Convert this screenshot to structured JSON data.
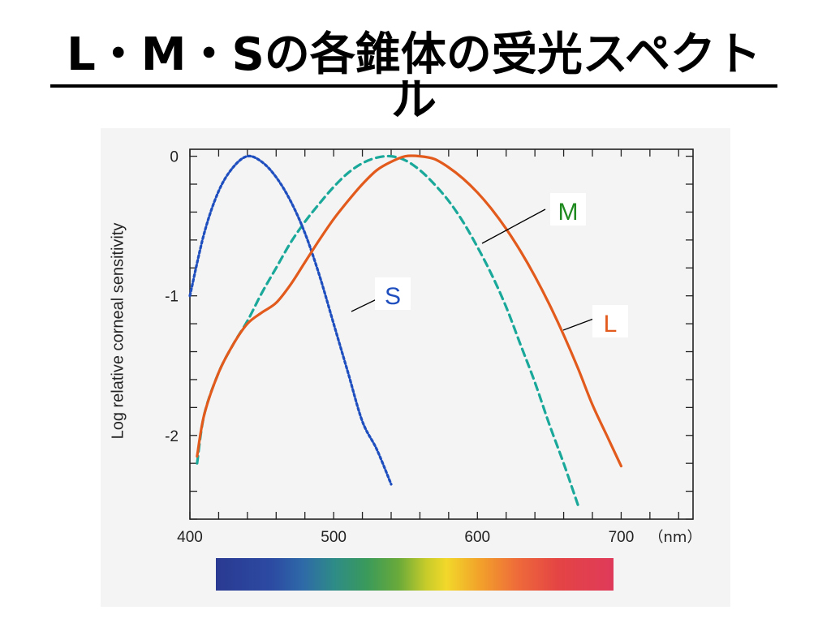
{
  "page": {
    "title": "L・M・Sの各錐体の受光スペクトル"
  },
  "colors": {
    "S": "#1f4fbf",
    "M": "#1aa89a",
    "L": "#e25a1c",
    "M_label": "#1f8a1f",
    "axis": "#222222"
  },
  "chart_data": {
    "type": "line",
    "title": "",
    "xlabel": "",
    "x_unit_label": "（nm）",
    "ylabel": "Log relative corneal sensitivity",
    "xlim": [
      400,
      750
    ],
    "ylim": [
      -2.6,
      0.05
    ],
    "x_ticks": [
      400,
      500,
      600,
      700
    ],
    "y_ticks": [
      0,
      -1,
      -2
    ],
    "y_tick_labels": [
      "0",
      "-1",
      "-2"
    ],
    "grid": false,
    "series": [
      {
        "name": "S",
        "style": "dotted",
        "x": [
          400,
          410,
          420,
          430,
          440,
          450,
          460,
          470,
          480,
          490,
          500,
          510,
          520,
          530,
          540
        ],
        "y": [
          -1.0,
          -0.55,
          -0.25,
          -0.08,
          0.0,
          -0.04,
          -0.15,
          -0.32,
          -0.55,
          -0.85,
          -1.2,
          -1.55,
          -1.9,
          -2.1,
          -2.35
        ]
      },
      {
        "name": "M",
        "style": "dashed",
        "x": [
          405,
          410,
          420,
          430,
          440,
          450,
          460,
          470,
          480,
          490,
          500,
          510,
          520,
          530,
          540,
          550,
          560,
          570,
          580,
          590,
          600,
          610,
          620,
          630,
          640,
          650,
          660,
          670
        ],
        "y": [
          -2.2,
          -1.85,
          -1.55,
          -1.35,
          -1.18,
          -0.98,
          -0.8,
          -0.62,
          -0.47,
          -0.34,
          -0.22,
          -0.12,
          -0.05,
          -0.01,
          0.0,
          -0.03,
          -0.1,
          -0.2,
          -0.32,
          -0.47,
          -0.65,
          -0.85,
          -1.08,
          -1.35,
          -1.62,
          -1.92,
          -2.2,
          -2.5
        ]
      },
      {
        "name": "L",
        "style": "solid",
        "x": [
          405,
          410,
          420,
          430,
          440,
          450,
          460,
          470,
          480,
          490,
          500,
          510,
          520,
          530,
          540,
          550,
          560,
          570,
          580,
          590,
          600,
          610,
          620,
          630,
          640,
          650,
          660,
          670,
          680,
          690,
          700
        ],
        "y": [
          -2.15,
          -1.85,
          -1.55,
          -1.35,
          -1.2,
          -1.12,
          -1.05,
          -0.92,
          -0.76,
          -0.6,
          -0.45,
          -0.32,
          -0.2,
          -0.1,
          -0.04,
          0.0,
          0.0,
          -0.02,
          -0.08,
          -0.16,
          -0.26,
          -0.38,
          -0.52,
          -0.68,
          -0.86,
          -1.06,
          -1.28,
          -1.52,
          -1.78,
          -2.0,
          -2.22
        ]
      }
    ],
    "annotations": [
      {
        "text": "S",
        "color": "#1f4fbf"
      },
      {
        "text": "M",
        "color": "#1f8a1f"
      },
      {
        "text": "L",
        "color": "#e25a1c"
      }
    ]
  },
  "spectrum": {
    "icon": "color-spectrum-bar"
  }
}
